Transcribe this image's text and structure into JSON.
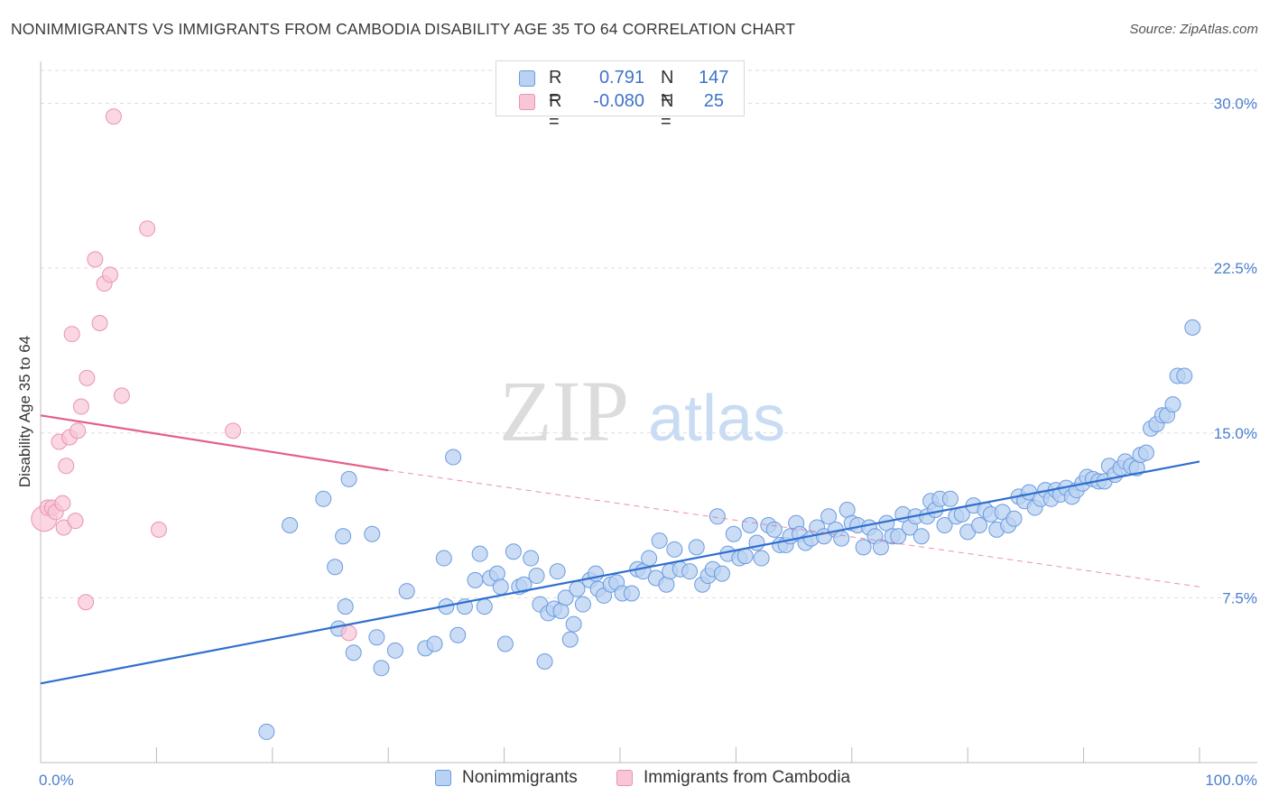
{
  "title": "NONIMMIGRANTS VS IMMIGRANTS FROM CAMBODIA DISABILITY AGE 35 TO 64 CORRELATION CHART",
  "source": "Source: ZipAtlas.com",
  "watermark": {
    "zip": "ZIP",
    "atlas": "atlas"
  },
  "legend_top": {
    "rows": [
      {
        "r_label": "R =",
        "r_value": "0.791",
        "n_label": "N =",
        "n_value": "147"
      },
      {
        "r_label": "R =",
        "r_value": "-0.080",
        "n_label": "N =",
        "n_value": "25"
      }
    ]
  },
  "legend_bottom": {
    "series1": "Nonimmigrants",
    "series2": "Immigrants from Cambodia"
  },
  "colors": {
    "blue_fill": "#b9d1f2",
    "blue_stroke": "#6b9be0",
    "blue_line": "#2f6fce",
    "pink_fill": "#f8c6d6",
    "pink_stroke": "#ea93b0",
    "pink_line": "#e2608a",
    "grid": "#dedede",
    "axis_tick_text": "#4a7fd0"
  },
  "chart_data": {
    "type": "scatter",
    "title": "NONIMMIGRANTS VS IMMIGRANTS FROM CAMBODIA DISABILITY AGE 35 TO 64 CORRELATION CHART",
    "xlabel": "",
    "ylabel": "Disability Age 35 to 64",
    "xlim": [
      0,
      100
    ],
    "ylim": [
      0,
      31.5
    ],
    "x_tick_labels": [
      "0.0%",
      "100.0%"
    ],
    "y_ticks": [
      7.5,
      15.0,
      22.5,
      30.0
    ],
    "y_tick_labels": [
      "7.5%",
      "15.0%",
      "22.5%",
      "30.0%"
    ],
    "grid": true,
    "legend_placement": "top-center",
    "series": [
      {
        "name": "Nonimmigrants",
        "r": 0.791,
        "n": 147,
        "trend": {
          "x": [
            0,
            100
          ],
          "y": [
            3.6,
            13.7
          ]
        },
        "points": [
          [
            19.5,
            1.4
          ],
          [
            21.5,
            10.8
          ],
          [
            24.4,
            12.0
          ],
          [
            25.4,
            8.9
          ],
          [
            25.7,
            6.1
          ],
          [
            26.1,
            10.3
          ],
          [
            26.3,
            7.1
          ],
          [
            26.6,
            12.9
          ],
          [
            27.0,
            5.0
          ],
          [
            28.6,
            10.4
          ],
          [
            29.0,
            5.7
          ],
          [
            29.4,
            4.3
          ],
          [
            30.6,
            5.1
          ],
          [
            31.6,
            7.8
          ],
          [
            33.2,
            5.2
          ],
          [
            34.0,
            5.4
          ],
          [
            34.8,
            9.3
          ],
          [
            35.0,
            7.1
          ],
          [
            35.6,
            13.9
          ],
          [
            36.0,
            5.8
          ],
          [
            36.6,
            7.1
          ],
          [
            37.5,
            8.3
          ],
          [
            37.9,
            9.5
          ],
          [
            38.3,
            7.1
          ],
          [
            38.8,
            8.4
          ],
          [
            39.4,
            8.6
          ],
          [
            39.7,
            8.0
          ],
          [
            40.1,
            5.4
          ],
          [
            40.8,
            9.6
          ],
          [
            41.3,
            8.0
          ],
          [
            41.7,
            8.1
          ],
          [
            42.3,
            9.3
          ],
          [
            42.8,
            8.5
          ],
          [
            43.1,
            7.2
          ],
          [
            43.5,
            4.6
          ],
          [
            43.8,
            6.8
          ],
          [
            44.3,
            7.0
          ],
          [
            44.6,
            8.7
          ],
          [
            44.9,
            6.9
          ],
          [
            45.3,
            7.5
          ],
          [
            45.7,
            5.6
          ],
          [
            46.0,
            6.3
          ],
          [
            46.3,
            7.9
          ],
          [
            46.8,
            7.2
          ],
          [
            47.4,
            8.3
          ],
          [
            47.9,
            8.6
          ],
          [
            48.1,
            7.9
          ],
          [
            48.6,
            7.6
          ],
          [
            49.2,
            8.1
          ],
          [
            49.7,
            8.2
          ],
          [
            50.2,
            7.7
          ],
          [
            51.0,
            7.7
          ],
          [
            51.5,
            8.8
          ],
          [
            52.0,
            8.7
          ],
          [
            52.5,
            9.3
          ],
          [
            53.1,
            8.4
          ],
          [
            53.4,
            10.1
          ],
          [
            54.0,
            8.1
          ],
          [
            54.3,
            8.7
          ],
          [
            54.7,
            9.7
          ],
          [
            55.2,
            8.8
          ],
          [
            56.0,
            8.7
          ],
          [
            56.6,
            9.8
          ],
          [
            57.1,
            8.1
          ],
          [
            57.6,
            8.5
          ],
          [
            58.0,
            8.8
          ],
          [
            58.4,
            11.2
          ],
          [
            58.8,
            8.6
          ],
          [
            59.3,
            9.5
          ],
          [
            59.8,
            10.4
          ],
          [
            60.3,
            9.3
          ],
          [
            60.8,
            9.4
          ],
          [
            61.2,
            10.8
          ],
          [
            61.8,
            10.0
          ],
          [
            62.2,
            9.3
          ],
          [
            62.8,
            10.8
          ],
          [
            63.3,
            10.6
          ],
          [
            63.8,
            9.9
          ],
          [
            64.3,
            9.9
          ],
          [
            64.7,
            10.3
          ],
          [
            65.2,
            10.9
          ],
          [
            65.5,
            10.4
          ],
          [
            66.0,
            10.0
          ],
          [
            66.5,
            10.2
          ],
          [
            67.0,
            10.7
          ],
          [
            67.6,
            10.3
          ],
          [
            68.0,
            11.2
          ],
          [
            68.6,
            10.6
          ],
          [
            69.1,
            10.2
          ],
          [
            69.6,
            11.5
          ],
          [
            70.0,
            10.9
          ],
          [
            70.5,
            10.8
          ],
          [
            71.0,
            9.8
          ],
          [
            71.5,
            10.7
          ],
          [
            72.0,
            10.3
          ],
          [
            72.5,
            9.8
          ],
          [
            73.0,
            10.9
          ],
          [
            73.5,
            10.3
          ],
          [
            74.0,
            10.3
          ],
          [
            74.4,
            11.3
          ],
          [
            75.0,
            10.7
          ],
          [
            75.5,
            11.2
          ],
          [
            76.0,
            10.3
          ],
          [
            76.5,
            11.2
          ],
          [
            76.8,
            11.9
          ],
          [
            77.2,
            11.5
          ],
          [
            77.6,
            12.0
          ],
          [
            78.0,
            10.8
          ],
          [
            78.5,
            12.0
          ],
          [
            79.0,
            11.2
          ],
          [
            79.5,
            11.3
          ],
          [
            80.0,
            10.5
          ],
          [
            80.5,
            11.7
          ],
          [
            81.0,
            10.8
          ],
          [
            81.5,
            11.5
          ],
          [
            82.0,
            11.3
          ],
          [
            82.5,
            10.6
          ],
          [
            83.0,
            11.4
          ],
          [
            83.5,
            10.8
          ],
          [
            84.0,
            11.1
          ],
          [
            84.4,
            12.1
          ],
          [
            84.9,
            11.9
          ],
          [
            85.3,
            12.3
          ],
          [
            85.8,
            11.6
          ],
          [
            86.3,
            12.0
          ],
          [
            86.7,
            12.4
          ],
          [
            87.2,
            12.0
          ],
          [
            87.6,
            12.4
          ],
          [
            88.0,
            12.2
          ],
          [
            88.5,
            12.5
          ],
          [
            89.0,
            12.1
          ],
          [
            89.4,
            12.4
          ],
          [
            89.9,
            12.7
          ],
          [
            90.3,
            13.0
          ],
          [
            90.8,
            12.9
          ],
          [
            91.3,
            12.8
          ],
          [
            91.8,
            12.8
          ],
          [
            92.2,
            13.5
          ],
          [
            92.7,
            13.1
          ],
          [
            93.2,
            13.4
          ],
          [
            93.6,
            13.7
          ],
          [
            94.1,
            13.5
          ],
          [
            94.6,
            13.4
          ],
          [
            94.9,
            14.0
          ],
          [
            95.4,
            14.1
          ],
          [
            95.8,
            15.2
          ],
          [
            96.3,
            15.4
          ],
          [
            96.8,
            15.8
          ],
          [
            97.2,
            15.8
          ],
          [
            97.7,
            16.3
          ],
          [
            98.1,
            17.6
          ],
          [
            98.7,
            17.6
          ],
          [
            99.4,
            19.8
          ]
        ]
      },
      {
        "name": "Immigrants from Cambodia",
        "r": -0.08,
        "n": 25,
        "trend_solid": {
          "x": [
            0,
            30
          ],
          "y": [
            15.8,
            13.3
          ]
        },
        "trend_dashed": {
          "x": [
            30,
            100
          ],
          "y": [
            13.3,
            8.0
          ]
        },
        "points": [
          [
            0.3,
            11.1
          ],
          [
            0.6,
            11.6
          ],
          [
            1.0,
            11.6
          ],
          [
            1.3,
            11.4
          ],
          [
            1.6,
            14.6
          ],
          [
            1.9,
            11.8
          ],
          [
            2.0,
            10.7
          ],
          [
            2.2,
            13.5
          ],
          [
            2.5,
            14.8
          ],
          [
            2.7,
            19.5
          ],
          [
            3.0,
            11.0
          ],
          [
            3.2,
            15.1
          ],
          [
            3.5,
            16.2
          ],
          [
            3.9,
            7.3
          ],
          [
            4.0,
            17.5
          ],
          [
            4.7,
            22.9
          ],
          [
            5.1,
            20.0
          ],
          [
            5.5,
            21.8
          ],
          [
            6.0,
            22.2
          ],
          [
            6.3,
            29.4
          ],
          [
            7.0,
            16.7
          ],
          [
            9.2,
            24.3
          ],
          [
            10.2,
            10.6
          ],
          [
            16.6,
            15.1
          ],
          [
            26.6,
            5.9
          ]
        ]
      }
    ]
  }
}
